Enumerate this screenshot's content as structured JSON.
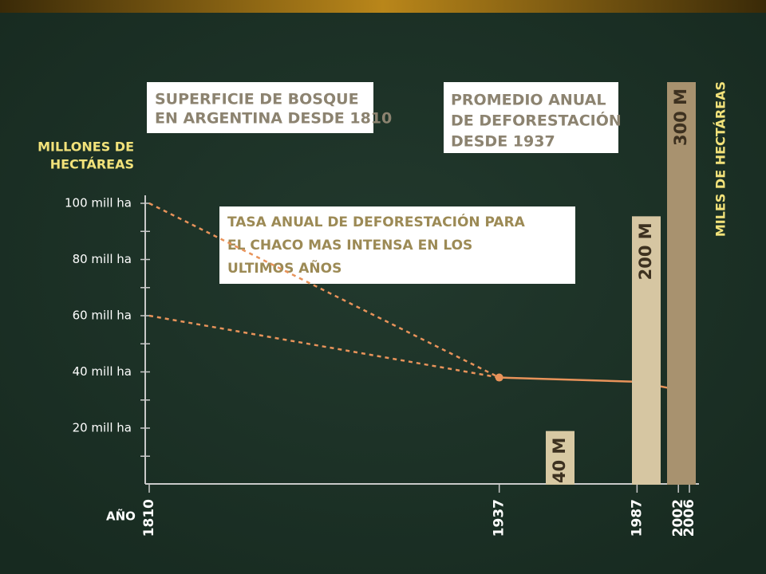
{
  "chart_data": [
    {
      "type": "line",
      "title": [
        "SUPERFICIE DE BOSQUE",
        "EN ARGENTINA DESDE 1810"
      ],
      "ylabel": [
        "MILLONES DE",
        "HECTÁREAS"
      ],
      "xlabel": "AÑO",
      "annotation": [
        "TASA ANUAL DE DEFORESTACIÓN PARA",
        "EL CHACO MAS INTENSA EN LOS",
        "ULTIMOS AÑOS"
      ],
      "x": [
        1810,
        1937,
        1987,
        2002,
        2006
      ],
      "series": [
        {
          "color": "#e8935a",
          "dashed": true,
          "values": [
            100,
            38,
            null,
            null,
            null
          ]
        },
        {
          "color": "#e8935a",
          "dashed": true,
          "values": [
            60,
            38,
            null,
            null,
            null
          ]
        },
        {
          "color": "#e8935a",
          "dashed": false,
          "markers": true,
          "values": [
            null,
            38,
            36.5,
            33.6,
            null
          ]
        }
      ],
      "xlim": [
        1810,
        2006
      ],
      "xticks": [
        1810,
        1937,
        1987,
        2002,
        2006
      ],
      "ylim": [
        0,
        100
      ],
      "yticks": [
        {
          "value": 20,
          "label": "20 mill ha"
        },
        {
          "value": 40,
          "label": "40 mill ha"
        },
        {
          "value": 60,
          "label": "60 mill ha"
        },
        {
          "value": 80,
          "label": "80 mill ha"
        },
        {
          "value": 100,
          "label": "100 mill ha"
        }
      ],
      "yminorticks": [
        10,
        30,
        50,
        70,
        90
      ]
    },
    {
      "type": "bar",
      "title": [
        "PROMEDIO ANUAL",
        "DE DEFORESTACIÓN",
        "DESDE 1937"
      ],
      "ylabel": "MILES DE HECTÁREAS",
      "categories": [
        null,
        null,
        null
      ],
      "values": [
        40,
        200,
        300
      ],
      "value_labels": [
        "40 M",
        "200 M",
        "300 M"
      ],
      "colors": [
        "#d8c9a3",
        "#d6c6a2",
        "#a8926f"
      ],
      "ylim": [
        0,
        300
      ]
    }
  ]
}
